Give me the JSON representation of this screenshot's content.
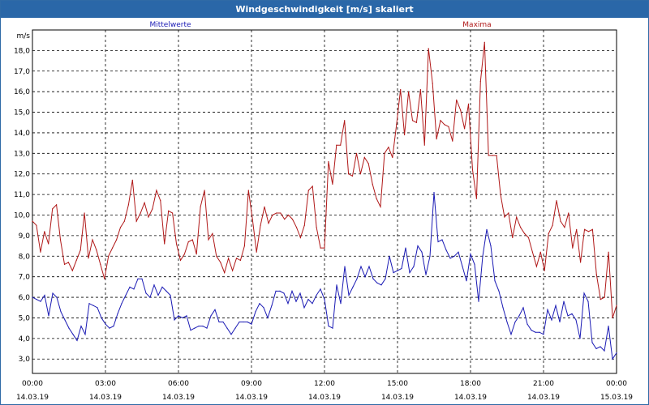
{
  "window": {
    "title": "Windgeschwindigkeit [m/s] skaliert"
  },
  "chart_data": {
    "type": "line",
    "title": "Windgeschwindigkeit [m/s] skaliert",
    "ylabel": "m/s",
    "ylim": [
      2.3,
      19.0
    ],
    "yticks": [
      3.0,
      4.0,
      5.0,
      6.0,
      7.0,
      8.0,
      9.0,
      10.0,
      11.0,
      12.0,
      13.0,
      14.0,
      15.0,
      16.0,
      17.0,
      18.0
    ],
    "ytick_labels": [
      "3,0",
      "4,0",
      "5,0",
      "6,0",
      "7,0",
      "8,0",
      "9,0",
      "10,0",
      "11,0",
      "12,0",
      "13,0",
      "14,0",
      "15,0",
      "16,0",
      "17,0",
      "18,0"
    ],
    "xlim_hours": [
      0,
      24
    ],
    "xticks": [
      {
        "time": "00:00",
        "date": "14.03.19"
      },
      {
        "time": "03:00",
        "date": "14.03.19"
      },
      {
        "time": "06:00",
        "date": "14.03.19"
      },
      {
        "time": "09:00",
        "date": "14.03.19"
      },
      {
        "time": "12:00",
        "date": "14.03.19"
      },
      {
        "time": "15:00",
        "date": "14.03.19"
      },
      {
        "time": "18:00",
        "date": "14.03.19"
      },
      {
        "time": "21:00",
        "date": "14.03.19"
      },
      {
        "time": "00:00",
        "date": "15.03.19"
      }
    ],
    "grid": true,
    "series": [
      {
        "name": "Mittelwerte",
        "color": "#1a1ab4",
        "values": [
          6.0,
          5.9,
          5.8,
          6.1,
          5.1,
          6.2,
          6.0,
          5.3,
          4.9,
          4.5,
          4.2,
          3.9,
          4.6,
          4.2,
          5.7,
          5.6,
          5.5,
          5.0,
          4.7,
          4.5,
          4.6,
          5.2,
          5.7,
          6.1,
          6.5,
          6.4,
          6.9,
          6.9,
          6.2,
          6.0,
          6.6,
          6.1,
          6.5,
          6.3,
          6.1,
          4.9,
          5.1,
          5.0,
          5.1,
          4.4,
          4.5,
          4.6,
          4.6,
          4.5,
          5.1,
          5.4,
          4.8,
          4.8,
          4.5,
          4.2,
          4.5,
          4.8,
          4.8,
          4.8,
          4.7,
          5.3,
          5.7,
          5.5,
          5.0,
          5.6,
          6.3,
          6.3,
          6.2,
          5.7,
          6.3,
          5.8,
          6.2,
          5.5,
          5.9,
          5.7,
          6.1,
          6.4,
          5.9,
          4.6,
          4.5,
          6.6,
          5.7,
          7.5,
          6.1,
          6.5,
          6.9,
          7.5,
          7.0,
          7.5,
          6.9,
          6.7,
          6.6,
          6.9,
          8.0,
          7.2,
          7.3,
          7.4,
          8.4,
          7.2,
          7.5,
          8.5,
          8.2,
          7.1,
          8.0,
          11.1,
          8.7,
          8.8,
          8.3,
          7.9,
          8.0,
          8.2,
          7.5,
          6.8,
          8.1,
          7.6,
          5.8,
          8.0,
          9.3,
          8.5,
          6.8,
          6.3,
          5.5,
          4.8,
          4.2,
          4.8,
          5.1,
          5.5,
          4.7,
          4.4,
          4.3,
          4.3,
          4.2,
          5.4,
          4.9,
          5.6,
          4.8,
          5.8,
          5.1,
          5.2,
          4.9,
          4.0,
          6.2,
          5.8,
          3.8,
          3.5,
          3.6,
          3.4,
          4.6,
          3.0,
          3.3
        ]
      },
      {
        "name": "Maxima",
        "color": "#b01818",
        "values": [
          9.7,
          9.5,
          8.2,
          9.2,
          8.6,
          10.3,
          10.5,
          8.8,
          7.6,
          7.7,
          7.3,
          7.8,
          8.3,
          10.1,
          7.9,
          8.8,
          8.3,
          7.6,
          6.9,
          8.0,
          8.4,
          8.8,
          9.4,
          9.7,
          10.5,
          11.7,
          9.7,
          10.1,
          10.6,
          9.9,
          10.3,
          11.2,
          10.7,
          8.6,
          10.2,
          10.1,
          8.6,
          7.8,
          8.1,
          8.7,
          8.8,
          8.1,
          10.4,
          11.2,
          8.8,
          9.1,
          8.0,
          7.7,
          7.2,
          7.9,
          7.3,
          7.9,
          7.8,
          8.5,
          11.2,
          9.8,
          8.2,
          9.5,
          10.4,
          9.6,
          10.0,
          10.1,
          10.1,
          9.8,
          10.0,
          9.8,
          9.4,
          8.9,
          9.5,
          11.2,
          11.4,
          9.4,
          8.4,
          8.4,
          12.6,
          11.5,
          13.4,
          13.4,
          14.6,
          12.0,
          11.9,
          13.0,
          12.0,
          12.8,
          12.5,
          11.5,
          10.8,
          10.4,
          13.0,
          13.3,
          12.8,
          14.4,
          16.1,
          13.9,
          16.0,
          14.6,
          14.5,
          16.1,
          13.4,
          18.1,
          16.4,
          13.7,
          14.6,
          14.4,
          14.3,
          13.6,
          15.6,
          15.1,
          14.2,
          15.4,
          12.2,
          10.8,
          16.5,
          18.4,
          12.9,
          12.9,
          12.9,
          11.0,
          9.9,
          10.1,
          8.9,
          9.9,
          9.4,
          9.1,
          8.9,
          8.2,
          7.5,
          8.2,
          7.3,
          9.1,
          9.5,
          10.7,
          9.7,
          9.4,
          10.1,
          8.4,
          9.3,
          7.7,
          9.3,
          9.2,
          9.3,
          7.1,
          5.9,
          6.0,
          8.2,
          5.0,
          5.6
        ]
      }
    ]
  }
}
